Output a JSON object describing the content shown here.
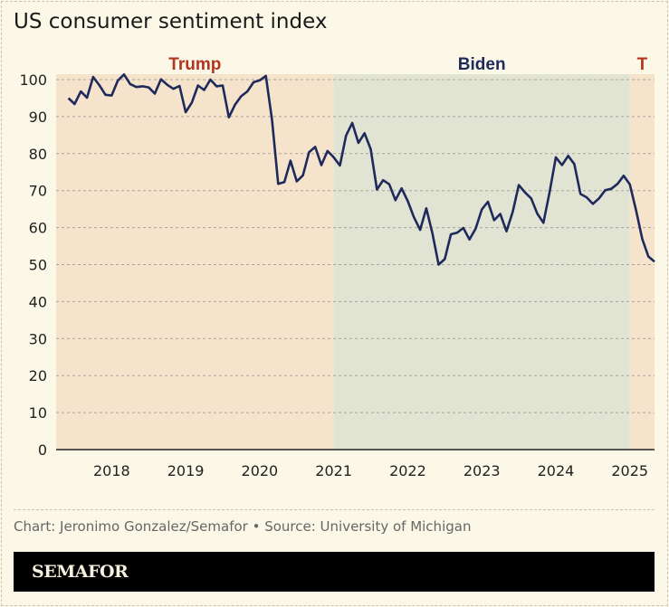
{
  "chart_data": {
    "type": "line",
    "title": "US consumer sentiment index",
    "xlabel": "",
    "ylabel": "",
    "ylim": [
      0,
      100
    ],
    "yticks": [
      0,
      10,
      20,
      30,
      40,
      50,
      60,
      70,
      80,
      90,
      100
    ],
    "xlim": [
      "2017-04",
      "2025-05"
    ],
    "xticks": [
      "2018",
      "2019",
      "2020",
      "2021",
      "2022",
      "2023",
      "2024",
      "2025"
    ],
    "grid": true,
    "line_color": "#1f2a5c",
    "start": "2017-06",
    "frequency": "monthly",
    "values": [
      95.0,
      93.4,
      96.8,
      95.1,
      100.7,
      98.5,
      95.9,
      95.7,
      99.7,
      101.4,
      98.8,
      98.0,
      98.2,
      97.9,
      96.2,
      100.1,
      98.6,
      97.5,
      98.3,
      91.2,
      93.8,
      98.4,
      97.2,
      100.0,
      98.2,
      98.4,
      89.8,
      93.2,
      95.5,
      96.8,
      99.3,
      99.8,
      101.0,
      89.1,
      71.8,
      72.3,
      78.1,
      72.5,
      74.1,
      80.4,
      81.8,
      76.9,
      80.7,
      79.0,
      76.8,
      84.9,
      88.3,
      82.9,
      85.5,
      81.2,
      70.3,
      72.8,
      71.7,
      67.4,
      70.6,
      67.2,
      62.8,
      59.4,
      65.2,
      58.4,
      50.0,
      51.5,
      58.2,
      58.6,
      59.9,
      56.8,
      59.7,
      64.9,
      67.0,
      62.0,
      63.7,
      59.0,
      64.2,
      71.5,
      69.5,
      67.9,
      63.8,
      61.3,
      69.7,
      79.0,
      76.9,
      79.4,
      77.2,
      69.1,
      68.2,
      66.4,
      67.9,
      70.1,
      70.5,
      71.8,
      74.0,
      71.7,
      64.7,
      57.0,
      52.2,
      50.8
    ],
    "shaded_periods": [
      {
        "label": "Trump",
        "from": "2017-04",
        "to": "2021-01",
        "color": "#f5e3cc",
        "label_color": "#b5341f"
      },
      {
        "label": "Biden",
        "from": "2021-01",
        "to": "2025-01",
        "color": "#e1e3d3",
        "label_color": "#1f2a5c"
      },
      {
        "label": "T",
        "from": "2025-01",
        "to": "2025-05",
        "color": "#f5e3cc",
        "label_color": "#b5341f"
      }
    ]
  },
  "footer": {
    "credit": "Chart: Jeronimo Gonzalez/Semafor • Source: University of Michigan",
    "brand": "SEMAFOR"
  }
}
